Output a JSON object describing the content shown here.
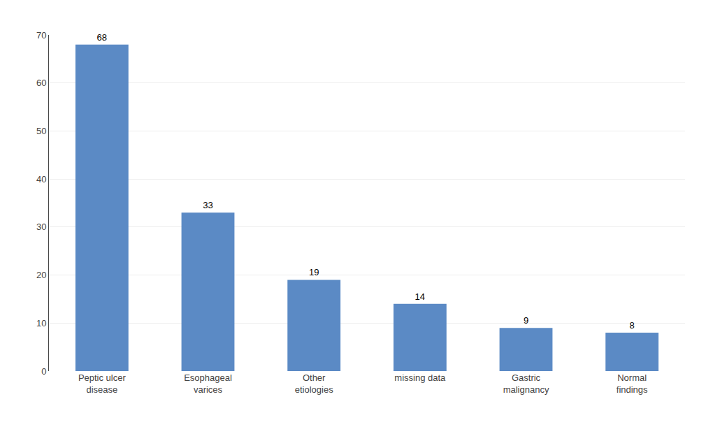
{
  "chart_data": {
    "type": "bar",
    "categories": [
      "Peptic ulcer\ndisease",
      "Esophageal\nvarices",
      "Other\netiologies",
      "missing data",
      "Gastric\nmalignancy",
      "Normal\nfindings"
    ],
    "values": [
      68,
      33,
      19,
      14,
      9,
      8
    ],
    "color": "#5b8ac5",
    "ylim": [
      0,
      70
    ],
    "yticks": [
      0,
      10,
      20,
      30,
      40,
      50,
      60,
      70
    ],
    "grid": true,
    "data_labels": true
  }
}
